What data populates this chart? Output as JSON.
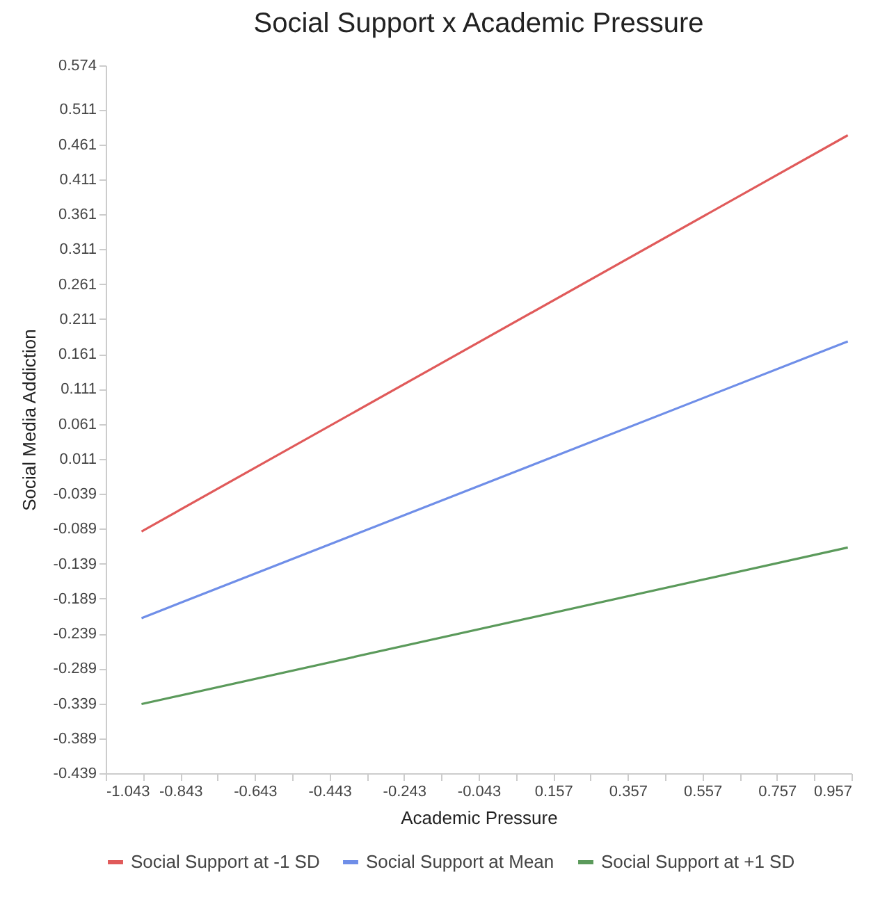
{
  "chart_data": {
    "type": "line",
    "title": "Social Support x Academic Pressure",
    "xlabel": "Academic Pressure",
    "ylabel": "Social Media Addiction",
    "x": [
      -0.947,
      0.947
    ],
    "series": [
      {
        "name": "Social Support at -1 SD",
        "color": "#e05a5a",
        "values": [
          -0.093,
          0.474
        ]
      },
      {
        "name": "Social Support at Mean",
        "color": "#6f8ee8",
        "values": [
          -0.217,
          0.179
        ]
      },
      {
        "name": "Social Support at +1 SD",
        "color": "#5b9a5b",
        "values": [
          -0.34,
          -0.116
        ]
      }
    ],
    "xlim": [
      -1.043,
      0.957
    ],
    "xticks": [
      -1.043,
      {
        "value": -0.943,
        "label": null
      },
      -0.843,
      {
        "value": -0.743,
        "label": null
      },
      -0.643,
      {
        "value": -0.543,
        "label": null
      },
      -0.443,
      {
        "value": -0.343,
        "label": null
      },
      -0.243,
      {
        "value": -0.143,
        "label": null
      },
      -0.043,
      {
        "value": 0.057,
        "label": null
      },
      0.157,
      {
        "value": 0.257,
        "label": null
      },
      0.357,
      {
        "value": 0.457,
        "label": null
      },
      0.557,
      {
        "value": 0.657,
        "label": null
      },
      0.757,
      {
        "value": 0.857,
        "label": null
      },
      0.957
    ],
    "ylim": [
      -0.439,
      0.574
    ],
    "yticks": [
      -0.439,
      -0.389,
      -0.339,
      -0.289,
      -0.239,
      -0.189,
      -0.139,
      -0.089,
      -0.039,
      0.011,
      0.061,
      0.111,
      0.161,
      0.211,
      0.261,
      0.311,
      0.361,
      0.411,
      0.461,
      0.511,
      0.574
    ],
    "grid": false,
    "legend": "bottom",
    "marker": "none",
    "line_style": "solid"
  }
}
